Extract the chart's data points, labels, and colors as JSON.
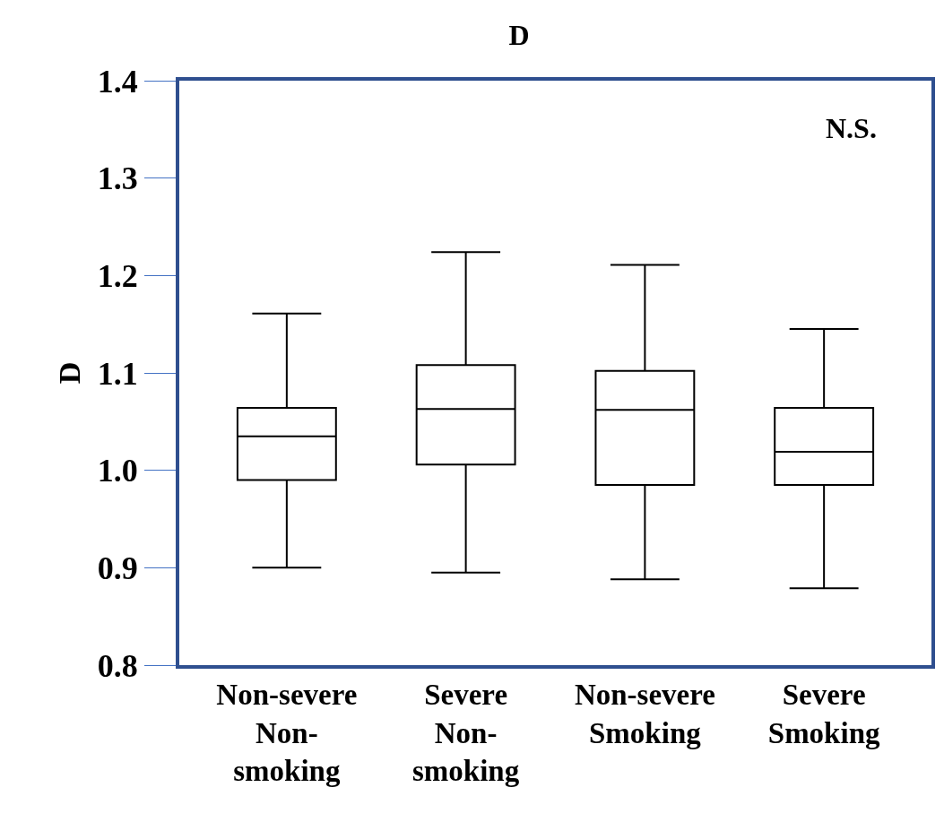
{
  "chart_data": {
    "type": "box",
    "title": "D",
    "ylabel": "D",
    "categories": [
      "Non-severe\nNon-\nsmoking",
      "Severe\nNon-\nsmoking",
      "Non-severe\nSmoking",
      "Severe\nSmoking"
    ],
    "boxes": [
      {
        "low": 0.9,
        "q1": 0.99,
        "median": 1.035,
        "q3": 1.064,
        "high": 1.161
      },
      {
        "low": 0.895,
        "q1": 1.006,
        "median": 1.063,
        "q3": 1.108,
        "high": 1.224
      },
      {
        "low": 0.888,
        "q1": 0.985,
        "median": 1.062,
        "q3": 1.102,
        "high": 1.211
      },
      {
        "low": 0.879,
        "q1": 0.985,
        "median": 1.019,
        "q3": 1.064,
        "high": 1.145
      }
    ],
    "color": "#000000",
    "ylim": [
      0.8,
      1.4
    ],
    "yticks": [
      0.8,
      0.9,
      {
        "value": 1,
        "label": "1.0"
      },
      1.1,
      1.2,
      1.3,
      1.4
    ],
    "annotations": [
      "N.S."
    ]
  }
}
